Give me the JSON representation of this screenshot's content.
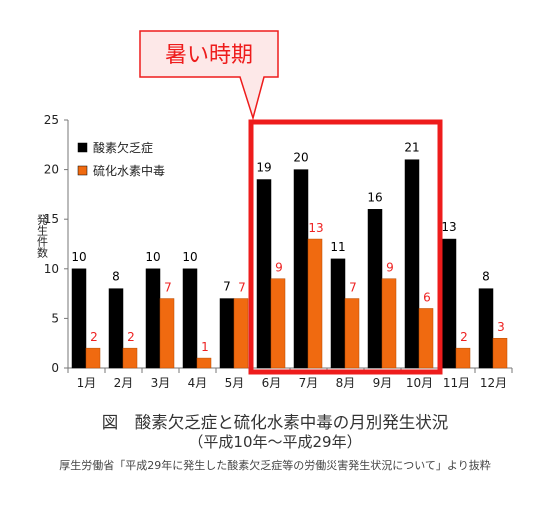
{
  "chart_data": {
    "type": "bar",
    "categories": [
      "1月",
      "2月",
      "3月",
      "4月",
      "5月",
      "6月",
      "7月",
      "8月",
      "9月",
      "10月",
      "11月",
      "12月"
    ],
    "series": [
      {
        "name": "酸素欠乏症",
        "color": "#000000",
        "label_color": "#000000",
        "values": [
          10,
          8,
          10,
          10,
          7,
          19,
          20,
          11,
          16,
          21,
          13,
          8
        ]
      },
      {
        "name": "硫化水素中毒",
        "color": "#f06a10",
        "label_color": "#ee2222",
        "values": [
          2,
          2,
          7,
          1,
          7,
          9,
          13,
          7,
          9,
          6,
          2,
          3
        ]
      }
    ],
    "ylabel": "発生件数",
    "ylim": [
      0,
      25
    ],
    "yticks": [
      "0",
      "5",
      "10",
      "15",
      "20",
      "25"
    ],
    "legend_position": "top-left",
    "highlight": {
      "label": "暑い時期",
      "from_category": "6月",
      "to_category": "10月",
      "color": "#ee1c1c"
    }
  },
  "caption": {
    "title": "図　酸素欠乏症と硫化水素中毒の月別発生状況",
    "period": "（平成10年～平成29年）",
    "source": "厚生労働省「平成29年に発生した酸素欠乏症等の労働災害発生状況について」より抜粋"
  }
}
